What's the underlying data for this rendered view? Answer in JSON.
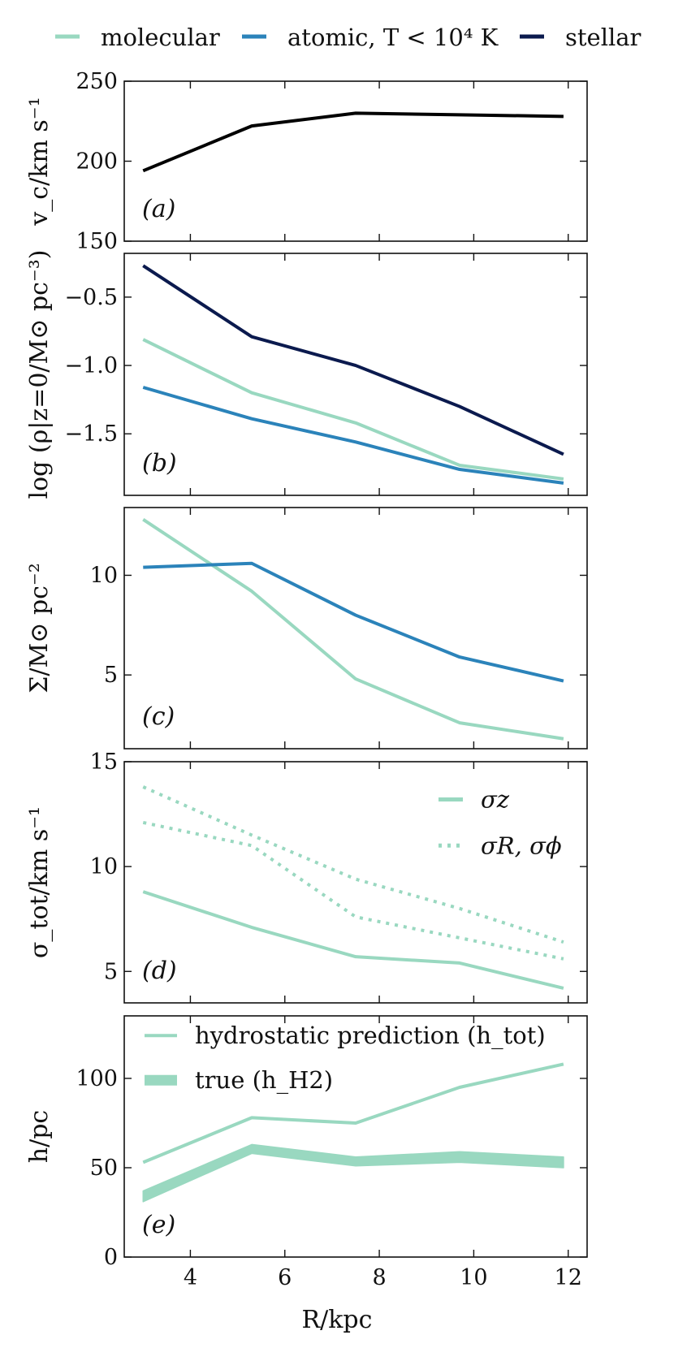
{
  "figure_legend": [
    {
      "label": "molecular",
      "color": "#99d8c0",
      "style": "solid"
    },
    {
      "label": "atomic, T < 10⁴ K",
      "color": "#2b83ba",
      "style": "solid"
    },
    {
      "label": "stellar",
      "color": "#0b1a4e",
      "style": "solid"
    }
  ],
  "shared_xlabel": "R/kpc",
  "chart_data": [
    {
      "id": "a",
      "type": "line",
      "panel_label": "(a)",
      "ylabel": "v_c/km s⁻¹",
      "xlim": [
        2.6,
        12.4
      ],
      "ylim": [
        150,
        250
      ],
      "yticks": [
        150,
        200,
        250
      ],
      "x": [
        3.0,
        5.3,
        7.5,
        9.7,
        11.9
      ],
      "series": [
        {
          "name": "",
          "color": "#000000",
          "width": 4,
          "values": [
            194,
            222,
            230,
            229,
            228
          ]
        }
      ]
    },
    {
      "id": "b",
      "type": "line",
      "panel_label": "(b)",
      "ylabel": "log (ρ|z=0/M⊙ pc⁻³)",
      "xlim": [
        2.6,
        12.4
      ],
      "ylim": [
        -1.95,
        -0.18
      ],
      "yticks": [
        -1.5,
        -1.0,
        -0.5
      ],
      "ytick_labels": [
        "−1.5",
        "−1.0",
        "−0.5"
      ],
      "x": [
        3.0,
        5.3,
        7.5,
        9.7,
        11.9
      ],
      "series": [
        {
          "name": "stellar",
          "color": "#0b1a4e",
          "width": 4,
          "values": [
            -0.27,
            -0.79,
            -1.0,
            -1.3,
            -1.65
          ]
        },
        {
          "name": "molecular",
          "color": "#99d8c0",
          "width": 4,
          "values": [
            -0.81,
            -1.2,
            -1.42,
            -1.73,
            -1.83
          ]
        },
        {
          "name": "atomic, T < 10⁴ K",
          "color": "#2b83ba",
          "width": 4,
          "values": [
            -1.16,
            -1.39,
            -1.56,
            -1.76,
            -1.86
          ]
        }
      ]
    },
    {
      "id": "c",
      "type": "line",
      "panel_label": "(c)",
      "ylabel": "Σ/M⊙ pc⁻²",
      "xlim": [
        2.6,
        12.4
      ],
      "ylim": [
        1.3,
        13.4
      ],
      "yticks": [
        5,
        10
      ],
      "x": [
        3.0,
        5.3,
        7.5,
        9.7,
        11.9
      ],
      "series": [
        {
          "name": "molecular",
          "color": "#99d8c0",
          "width": 4,
          "values": [
            12.8,
            9.2,
            4.8,
            2.6,
            1.8
          ]
        },
        {
          "name": "atomic, T < 10⁴ K",
          "color": "#2b83ba",
          "width": 4,
          "values": [
            10.4,
            10.6,
            8.0,
            5.9,
            4.7
          ]
        }
      ]
    },
    {
      "id": "d",
      "type": "line",
      "panel_label": "(d)",
      "ylabel": "σ_tot/km s⁻¹",
      "xlim": [
        2.6,
        12.4
      ],
      "ylim": [
        3.5,
        15
      ],
      "yticks": [
        5,
        10,
        15
      ],
      "x": [
        3.0,
        5.3,
        7.5,
        9.7,
        11.9
      ],
      "legend": [
        {
          "label": "σz",
          "style": "solid"
        },
        {
          "label": "σR, σϕ",
          "style": "dotted"
        }
      ],
      "series": [
        {
          "name": "σR, σϕ",
          "color": "#99d8c0",
          "width": 4,
          "dash": "dotted",
          "values": [
            13.8,
            11.5,
            9.4,
            8.0,
            6.4
          ]
        },
        {
          "name": "σR, σϕ",
          "color": "#99d8c0",
          "width": 4,
          "dash": "dotted",
          "values": [
            12.1,
            11.0,
            7.6,
            6.6,
            5.6
          ]
        },
        {
          "name": "σz",
          "color": "#99d8c0",
          "width": 4,
          "values": [
            8.8,
            7.1,
            5.7,
            5.4,
            4.2
          ]
        }
      ]
    },
    {
      "id": "e",
      "type": "line",
      "panel_label": "(e)",
      "ylabel": "h/pc",
      "xlim": [
        2.6,
        12.4
      ],
      "ylim": [
        0,
        135
      ],
      "yticks": [
        0,
        50,
        100
      ],
      "xticks": [
        4,
        6,
        8,
        10,
        12
      ],
      "x": [
        3.0,
        5.3,
        7.5,
        9.7,
        11.9
      ],
      "legend": [
        {
          "label": "hydrostatic prediction (h_tot)",
          "style": "thin"
        },
        {
          "label": "true (h_H2)",
          "style": "thick"
        }
      ],
      "series": [
        {
          "name": "hydrostatic prediction (h_tot)",
          "color": "#99d8c0",
          "width": 4,
          "values": [
            53,
            78,
            75,
            95,
            108
          ]
        },
        {
          "name": "true (h_H2)",
          "color": "#99d8c0",
          "band": true,
          "lower": [
            31,
            58,
            51,
            53,
            50
          ],
          "upper": [
            37,
            63,
            56,
            59,
            56
          ]
        }
      ]
    }
  ]
}
